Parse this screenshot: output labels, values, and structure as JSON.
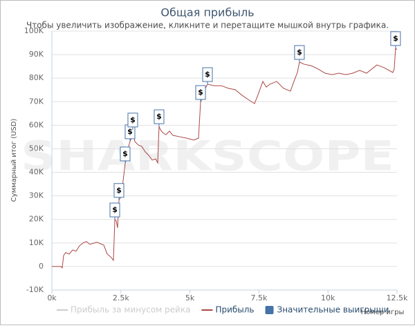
{
  "chart_data": {
    "type": "line",
    "title": "Общая прибыль",
    "subtitle": "Чтобы увеличить изображение, кликните и перетащите мышкой внутрь графика.",
    "watermark": "SHARKSCOPE",
    "y_label": "Суммарный итог (USD)",
    "x_label": "Номер игры",
    "xlim": [
      0,
      12500
    ],
    "xticks": [
      {
        "value": 0,
        "label": "0k"
      },
      {
        "value": 2500,
        "label": "2.5k"
      },
      {
        "value": 5000,
        "label": "5k"
      },
      {
        "value": 7500,
        "label": "7.5k"
      },
      {
        "value": 10000,
        "label": "10k"
      },
      {
        "value": 12500,
        "label": "12.5k"
      }
    ],
    "ylim": [
      -10000,
      100000
    ],
    "yticks": [
      {
        "value": -10000,
        "label": "-10K"
      },
      0,
      {
        "value": 10000,
        "label": "10K"
      },
      {
        "value": 20000,
        "label": "20K"
      },
      {
        "value": 30000,
        "label": "30K"
      },
      {
        "value": 40000,
        "label": "40K"
      },
      {
        "value": 50000,
        "label": "50K"
      },
      {
        "value": 60000,
        "label": "60K"
      },
      {
        "value": 70000,
        "label": "70K"
      },
      {
        "value": 80000,
        "label": "80K"
      },
      {
        "value": 90000,
        "label": "90K"
      },
      {
        "value": 100000,
        "label": "100K"
      }
    ],
    "grid": true,
    "x": [
      0,
      325,
      375,
      425,
      500,
      626,
      750,
      877,
      1002,
      1127,
      1252,
      1378,
      1628,
      1879,
      2004,
      2129,
      2229,
      2280,
      2330,
      2380,
      2430,
      2505,
      2580,
      2655,
      2705,
      2755,
      2830,
      2880,
      2930,
      3005,
      3131,
      3256,
      3382,
      3507,
      3632,
      3757,
      3832,
      3882,
      3932,
      4008,
      4133,
      4258,
      4383,
      4634,
      4884,
      5135,
      5310,
      5386,
      5461,
      5561,
      5636,
      5886,
      6137,
      6387,
      6638,
      6888,
      7139,
      7339,
      7439,
      7640,
      7765,
      7890,
      8140,
      8390,
      8641,
      8766,
      8891,
      8966,
      9141,
      9392,
      9642,
      9893,
      10143,
      10394,
      10645,
      10895,
      11146,
      11396,
      11772,
      12023,
      12348,
      12398,
      12448,
      12498
    ],
    "series": [
      {
        "name": "Прибыль за минусом рейка",
        "color": "#cccccc",
        "visible": false
      },
      {
        "name": "Прибыль",
        "color": "#aa4643",
        "visible": true,
        "values": [
          0,
          0,
          -600,
          4700,
          5900,
          5300,
          7000,
          6500,
          8800,
          10000,
          10600,
          9400,
          10300,
          9100,
          5300,
          4100,
          2600,
          19900,
          19400,
          16400,
          28200,
          29600,
          36400,
          43700,
          47200,
          50100,
          53100,
          54500,
          58100,
          53100,
          51600,
          51000,
          48700,
          47200,
          45200,
          45700,
          44000,
          59500,
          58100,
          56900,
          56000,
          57500,
          55700,
          55100,
          54500,
          53700,
          54500,
          69800,
          72100,
          75700,
          77400,
          76800,
          76800,
          75700,
          75100,
          72700,
          70700,
          69200,
          72100,
          78600,
          76200,
          77400,
          78600,
          75700,
          74500,
          78600,
          82400,
          86800,
          85900,
          85300,
          83900,
          82100,
          81500,
          82100,
          81500,
          82100,
          83300,
          82100,
          85600,
          84500,
          82400,
          83900,
          92700,
          92100
        ]
      }
    ],
    "flags": {
      "name": "Значительные выигрыши",
      "color": "#4572a7",
      "label": "$",
      "x": [
        2280,
        2430,
        2655,
        2830,
        2930,
        3882,
        5386,
        5636,
        8966,
        12448
      ],
      "values": [
        19900,
        28200,
        43700,
        53100,
        58100,
        59500,
        69800,
        77400,
        86800,
        92700
      ]
    }
  }
}
